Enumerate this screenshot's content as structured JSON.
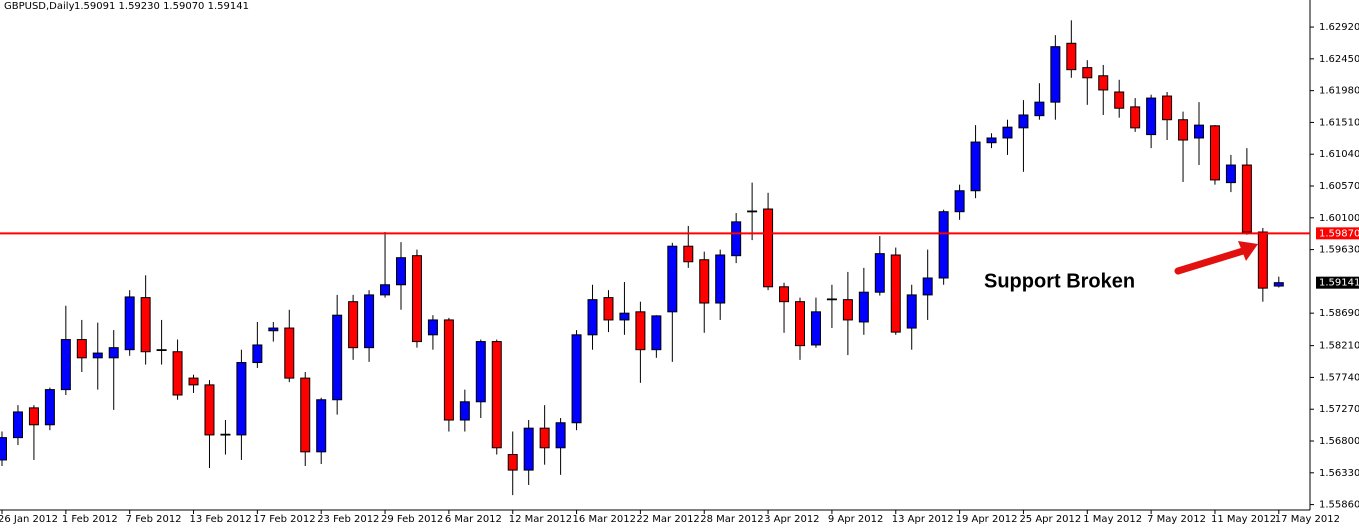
{
  "chart_data": {
    "type": "candlestick",
    "title": "GBPUSD,Daily",
    "subtitle": "1.59091 1.59230 1.59070 1.59141",
    "annotation": "Support Broken",
    "categories": [
      "26 Jan 2012",
      null,
      null,
      null,
      "1 Feb 2012",
      null,
      null,
      null,
      "7 Feb 2012",
      null,
      null,
      null,
      "13 Feb 2012",
      null,
      null,
      null,
      "17 Feb 2012",
      null,
      null,
      null,
      "23 Feb 2012",
      null,
      null,
      null,
      "29 Feb 2012",
      null,
      null,
      null,
      "6 Mar 2012",
      null,
      null,
      null,
      "12 Mar 2012",
      null,
      null,
      null,
      "16 Mar 2012",
      null,
      null,
      null,
      "22 Mar 2012",
      null,
      null,
      null,
      "28 Mar 2012",
      null,
      null,
      null,
      "3 Apr 2012",
      null,
      null,
      null,
      "9 Apr 2012",
      null,
      null,
      null,
      "13 Apr 2012",
      null,
      null,
      null,
      "19 Apr 2012",
      null,
      null,
      null,
      "25 Apr 2012",
      null,
      null,
      null,
      "1 May 2012",
      null,
      null,
      null,
      "7 May 2012",
      null,
      null,
      null,
      "11 May 2012",
      null,
      null,
      null,
      "17 May 2012"
    ],
    "open": [
      1.5652,
      1.5685,
      1.5729,
      1.5704,
      1.5756,
      1.583,
      1.5803,
      1.5803,
      1.5815,
      1.5892,
      1.5815,
      1.5812,
      1.5773,
      1.5763,
      1.5689,
      1.5689,
      1.5796,
      1.5843,
      1.5847,
      1.5773,
      1.5664,
      1.5741,
      1.5886,
      1.5818,
      1.5896,
      1.5911,
      1.5954,
      1.5837,
      1.5859,
      1.5711,
      1.5738,
      1.5827,
      1.566,
      1.5637,
      1.5699,
      1.567,
      1.5707,
      1.5837,
      1.5892,
      1.5859,
      1.5871,
      1.5815,
      1.5871,
      1.5968,
      1.5948,
      1.5884,
      1.5954,
      1.602,
      1.6023,
      1.5908,
      1.5886,
      1.5822,
      1.5889,
      1.5889,
      1.5856,
      1.59,
      1.5955,
      1.5847,
      1.5896,
      1.5921,
      1.6019,
      1.605,
      1.6121,
      1.6128,
      1.6143,
      1.6161,
      1.6181,
      1.6268,
      1.6232,
      1.622,
      1.6196,
      1.6174,
      1.6133,
      1.619,
      1.6155,
      1.6128,
      1.6146,
      1.6062,
      1.6088,
      1.5989,
      1.59091
    ],
    "high": [
      1.5694,
      1.5733,
      1.5733,
      1.5759,
      1.588,
      1.5859,
      1.5855,
      1.5844,
      1.5903,
      1.5925,
      1.5859,
      1.583,
      1.5778,
      1.577,
      1.5711,
      1.5815,
      1.5856,
      1.5856,
      1.5874,
      1.5782,
      1.5744,
      1.5896,
      1.5896,
      1.5903,
      1.5989,
      1.5974,
      1.5963,
      1.5866,
      1.5862,
      1.5756,
      1.583,
      1.583,
      1.5694,
      1.5711,
      1.5733,
      1.5714,
      1.5844,
      1.5911,
      1.5903,
      1.5915,
      1.5886,
      1.5866,
      1.5973,
      1.5998,
      1.596,
      1.5963,
      1.6017,
      1.6062,
      1.6047,
      1.5914,
      1.5892,
      1.5892,
      1.5911,
      1.593,
      1.5936,
      1.5983,
      1.5966,
      1.5911,
      1.5963,
      1.6022,
      1.6059,
      1.6147,
      1.6135,
      1.6155,
      1.6184,
      1.6209,
      1.628,
      1.6302,
      1.6243,
      1.6236,
      1.6214,
      1.6187,
      1.6192,
      1.6196,
      1.6167,
      1.6181,
      1.6147,
      1.6103,
      1.6113,
      1.5995,
      1.5923
    ],
    "low": [
      1.5643,
      1.5674,
      1.5652,
      1.5696,
      1.5748,
      1.5782,
      1.5756,
      1.5726,
      1.5806,
      1.5793,
      1.5793,
      1.5741,
      1.5751,
      1.564,
      1.566,
      1.5652,
      1.5788,
      1.5827,
      1.5767,
      1.5643,
      1.5646,
      1.5719,
      1.58,
      1.5797,
      1.5892,
      1.5874,
      1.5818,
      1.5815,
      1.5694,
      1.5694,
      1.5714,
      1.566,
      1.56,
      1.5615,
      1.5645,
      1.563,
      1.5696,
      1.5815,
      1.5841,
      1.5837,
      1.5766,
      1.5803,
      1.5797,
      1.5936,
      1.584,
      1.5859,
      1.5943,
      1.5977,
      1.5903,
      1.584,
      1.58,
      1.5818,
      1.5847,
      1.5807,
      1.5837,
      1.5895,
      1.5837,
      1.5815,
      1.5859,
      1.5911,
      1.6007,
      1.6039,
      1.6113,
      1.6103,
      1.6078,
      1.6155,
      1.6155,
      1.6217,
      1.6177,
      1.6162,
      1.6158,
      1.6137,
      1.6113,
      1.6125,
      1.6063,
      1.6088,
      1.6059,
      1.6048,
      1.5985,
      1.5886,
      1.5907
    ],
    "close": [
      1.5685,
      1.5723,
      1.5704,
      1.5756,
      1.583,
      1.5803,
      1.581,
      1.5818,
      1.5893,
      1.5812,
      1.5814,
      1.5748,
      1.5763,
      1.5689,
      1.569,
      1.5796,
      1.5822,
      1.5847,
      1.5773,
      1.5664,
      1.5741,
      1.5866,
      1.5818,
      1.5896,
      1.5911,
      1.5951,
      1.5827,
      1.5859,
      1.5711,
      1.5738,
      1.5827,
      1.567,
      1.5637,
      1.5699,
      1.567,
      1.5707,
      1.5837,
      1.5889,
      1.5859,
      1.5869,
      1.5815,
      1.5865,
      1.5968,
      1.5945,
      1.5884,
      1.5955,
      1.6004,
      1.6019,
      1.5908,
      1.5886,
      1.5821,
      1.5871,
      1.589,
      1.5859,
      1.59,
      1.5957,
      1.5841,
      1.5896,
      1.5921,
      1.6019,
      1.605,
      1.6122,
      1.6128,
      1.6144,
      1.6162,
      1.6181,
      1.6263,
      1.6229,
      1.6217,
      1.6199,
      1.6172,
      1.6143,
      1.6187,
      1.6155,
      1.6125,
      1.6147,
      1.6066,
      1.6088,
      1.5989,
      1.5906,
      1.59141
    ],
    "up_color": "#0000ff",
    "down_color": "#ff0000",
    "ylim": [
      1.5578,
      1.6332
    ],
    "yticks": [
      {
        "value": 1.6292,
        "label": "1.62920"
      },
      {
        "value": 1.6245,
        "label": "1.62450"
      },
      {
        "value": 1.6198,
        "label": "1.61980"
      },
      {
        "value": 1.6151,
        "label": "1.61510"
      },
      {
        "value": 1.6104,
        "label": "1.61040"
      },
      {
        "value": 1.6057,
        "label": "1.60570"
      },
      {
        "value": 1.601,
        "label": "1.60100"
      },
      {
        "value": 1.5963,
        "label": "1.59630"
      },
      {
        "value": 1.5869,
        "label": "1.58690"
      },
      {
        "value": 1.5821,
        "label": "1.58210"
      },
      {
        "value": 1.5774,
        "label": "1.57740"
      },
      {
        "value": 1.5727,
        "label": "1.57270"
      },
      {
        "value": 1.568,
        "label": "1.56800"
      },
      {
        "value": 1.5633,
        "label": "1.56330"
      },
      {
        "value": 1.5586,
        "label": "1.55860"
      }
    ],
    "hline": {
      "value": 1.5987,
      "label": "1.59870",
      "color": "#ff0000"
    }
  }
}
